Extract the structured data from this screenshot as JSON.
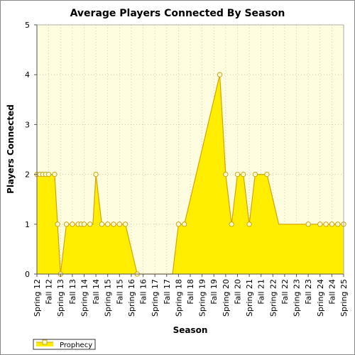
{
  "chart_data": {
    "type": "area",
    "title": "Average Players Connected By Season",
    "xlabel": "Season",
    "ylabel": "Players Connected",
    "ylim": [
      0,
      5
    ],
    "y_ticks": [
      "0",
      "1",
      "2",
      "3",
      "4",
      "5"
    ],
    "grid": true,
    "legend_position": "bottom-left",
    "tick_labels": [
      "Spring 12",
      "Fall 12",
      "Spring 13",
      "Fall 13",
      "Spring 14",
      "Fall 14",
      "Spring 15",
      "Fall 15",
      "Spring 16",
      "Fall 16",
      "Spring 17",
      "Fall 17",
      "Spring 18",
      "Fall 18",
      "Spring 19",
      "Fall 19",
      "Spring 20",
      "Fall 20",
      "Spring 21",
      "Fall 21",
      "Spring 22",
      "Fall 22",
      "Spring 23",
      "Fall 23",
      "Spring 24",
      "Fall 24",
      "Spring 25"
    ],
    "x": [
      0.0,
      0.25,
      0.5,
      0.75,
      1.0,
      1.25,
      1.5,
      1.75,
      2.0,
      2.25,
      2.5,
      3.0,
      3.5,
      3.75,
      4.0,
      4.25,
      4.5,
      4.75,
      5.0,
      5.25,
      5.5,
      5.75,
      6.0,
      6.25,
      6.5,
      7.0,
      7.5,
      8.0,
      8.5,
      9.0,
      9.5,
      10.0,
      10.5,
      11.0,
      11.5,
      12.0,
      12.5,
      13.0,
      13.5,
      14.0,
      14.5,
      15.0,
      15.5,
      16.0,
      16.5,
      17.0,
      17.5,
      18.0,
      18.5,
      19.0,
      19.5,
      20.0,
      20.5,
      21.0,
      21.5,
      22.0,
      22.5,
      23.0,
      23.5,
      24.0,
      24.5,
      25.0,
      25.5,
      26.0
    ],
    "series": [
      {
        "name": "Prophecy",
        "color": "#ffee00",
        "line_color": "#d7a400",
        "marker_fill": "#fffbd0",
        "values": [
          2,
          2,
          2,
          2,
          2,
          2,
          2,
          1,
          0,
          0.5,
          1,
          1,
          1,
          1,
          1,
          1,
          1,
          1,
          2,
          1.5,
          1,
          1,
          1,
          1,
          1,
          1,
          1,
          0.5,
          0,
          0,
          0,
          0,
          0,
          0,
          0,
          1,
          1,
          1.5,
          2,
          2.5,
          3,
          3.5,
          4,
          2,
          1,
          2,
          2,
          1,
          2,
          2,
          2,
          1.5,
          1,
          1,
          1,
          1,
          1,
          1,
          1,
          1,
          1,
          1,
          1,
          1
        ],
        "markers": [
          true,
          true,
          true,
          true,
          true,
          false,
          true,
          true,
          true,
          false,
          true,
          true,
          true,
          true,
          true,
          false,
          true,
          false,
          true,
          false,
          true,
          false,
          true,
          false,
          true,
          true,
          true,
          false,
          true,
          false,
          false,
          false,
          false,
          false,
          false,
          true,
          true,
          false,
          false,
          false,
          false,
          false,
          true,
          true,
          true,
          true,
          true,
          true,
          true,
          false,
          true,
          false,
          false,
          false,
          false,
          false,
          false,
          true,
          false,
          true,
          true,
          true,
          true,
          true
        ]
      }
    ]
  }
}
